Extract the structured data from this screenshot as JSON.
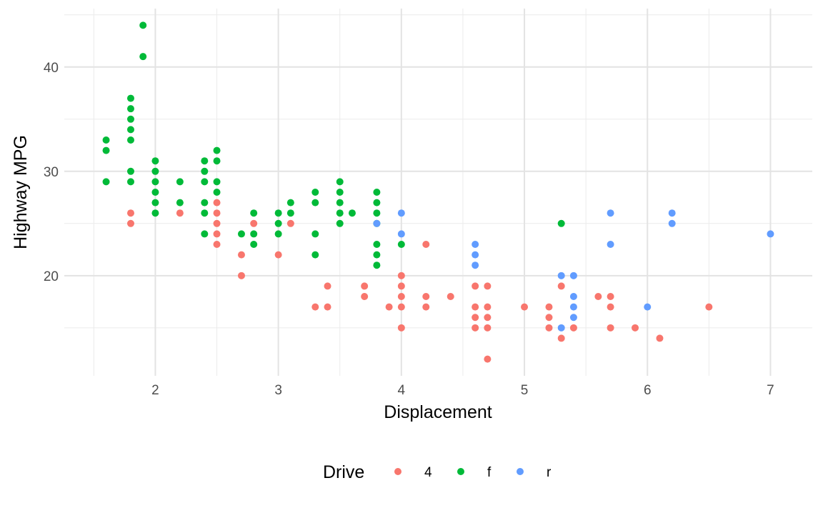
{
  "chart_data": {
    "type": "scatter",
    "xlabel": "Displacement",
    "ylabel": "Highway MPG",
    "xlim": [
      1.26,
      7.34
    ],
    "ylim": [
      10.4,
      45.6
    ],
    "x_ticks": [
      2,
      3,
      4,
      5,
      6,
      7
    ],
    "x_minor_ticks": [
      1.5,
      2.5,
      3.5,
      4.5,
      5.5,
      6.5
    ],
    "y_ticks": [
      20,
      30,
      40
    ],
    "y_minor_ticks": [
      15,
      25,
      35,
      45
    ],
    "grid": true,
    "legend": {
      "title": "Drive",
      "placement": "bottom"
    },
    "series": [
      {
        "name": "4",
        "color": "#F8766D",
        "points": [
          [
            1.8,
            26
          ],
          [
            1.8,
            25
          ],
          [
            2.2,
            26
          ],
          [
            2.5,
            27
          ],
          [
            2.5,
            26
          ],
          [
            2.5,
            25
          ],
          [
            2.5,
            24
          ],
          [
            2.5,
            23
          ],
          [
            2.7,
            22
          ],
          [
            2.7,
            20
          ],
          [
            2.8,
            25
          ],
          [
            3.0,
            22
          ],
          [
            3.1,
            25
          ],
          [
            3.3,
            17
          ],
          [
            3.4,
            19
          ],
          [
            3.4,
            17
          ],
          [
            3.7,
            19
          ],
          [
            3.7,
            18
          ],
          [
            3.9,
            17
          ],
          [
            4.0,
            20
          ],
          [
            4.0,
            19
          ],
          [
            4.0,
            18
          ],
          [
            4.0,
            17
          ],
          [
            4.0,
            15
          ],
          [
            4.2,
            23
          ],
          [
            4.2,
            18
          ],
          [
            4.2,
            17
          ],
          [
            4.4,
            18
          ],
          [
            4.6,
            19
          ],
          [
            4.6,
            17
          ],
          [
            4.6,
            16
          ],
          [
            4.6,
            15
          ],
          [
            4.7,
            19
          ],
          [
            4.7,
            17
          ],
          [
            4.7,
            16
          ],
          [
            4.7,
            15
          ],
          [
            4.7,
            12
          ],
          [
            5.0,
            17
          ],
          [
            5.2,
            17
          ],
          [
            5.2,
            16
          ],
          [
            5.2,
            15
          ],
          [
            5.3,
            19
          ],
          [
            5.3,
            14
          ],
          [
            5.4,
            15
          ],
          [
            5.6,
            18
          ],
          [
            5.7,
            18
          ],
          [
            5.7,
            17
          ],
          [
            5.7,
            15
          ],
          [
            5.9,
            15
          ],
          [
            6.1,
            14
          ],
          [
            6.5,
            17
          ]
        ]
      },
      {
        "name": "f",
        "color": "#00BA38",
        "points": [
          [
            1.6,
            33
          ],
          [
            1.6,
            32
          ],
          [
            1.6,
            29
          ],
          [
            1.8,
            37
          ],
          [
            1.8,
            36
          ],
          [
            1.8,
            35
          ],
          [
            1.8,
            34
          ],
          [
            1.8,
            33
          ],
          [
            1.8,
            30
          ],
          [
            1.8,
            29
          ],
          [
            1.9,
            44
          ],
          [
            1.9,
            41
          ],
          [
            2.0,
            31
          ],
          [
            2.0,
            30
          ],
          [
            2.0,
            29
          ],
          [
            2.0,
            28
          ],
          [
            2.0,
            27
          ],
          [
            2.0,
            26
          ],
          [
            2.2,
            29
          ],
          [
            2.2,
            27
          ],
          [
            2.4,
            31
          ],
          [
            2.4,
            30
          ],
          [
            2.4,
            29
          ],
          [
            2.4,
            27
          ],
          [
            2.4,
            26
          ],
          [
            2.4,
            24
          ],
          [
            2.5,
            32
          ],
          [
            2.5,
            31
          ],
          [
            2.5,
            29
          ],
          [
            2.5,
            28
          ],
          [
            2.7,
            24
          ],
          [
            2.8,
            26
          ],
          [
            2.8,
            24
          ],
          [
            2.8,
            23
          ],
          [
            3.0,
            26
          ],
          [
            3.0,
            25
          ],
          [
            3.0,
            24
          ],
          [
            3.1,
            27
          ],
          [
            3.1,
            26
          ],
          [
            3.3,
            28
          ],
          [
            3.3,
            27
          ],
          [
            3.3,
            24
          ],
          [
            3.3,
            22
          ],
          [
            3.5,
            29
          ],
          [
            3.5,
            28
          ],
          [
            3.5,
            27
          ],
          [
            3.5,
            26
          ],
          [
            3.5,
            25
          ],
          [
            3.6,
            26
          ],
          [
            3.8,
            28
          ],
          [
            3.8,
            27
          ],
          [
            3.8,
            26
          ],
          [
            3.8,
            25
          ],
          [
            3.8,
            23
          ],
          [
            3.8,
            22
          ],
          [
            3.8,
            21
          ],
          [
            4.0,
            23
          ],
          [
            5.3,
            25
          ]
        ]
      },
      {
        "name": "r",
        "color": "#619CFF",
        "points": [
          [
            3.8,
            25
          ],
          [
            4.0,
            26
          ],
          [
            4.0,
            24
          ],
          [
            4.6,
            23
          ],
          [
            4.6,
            22
          ],
          [
            4.6,
            21
          ],
          [
            5.3,
            20
          ],
          [
            5.3,
            15
          ],
          [
            5.4,
            20
          ],
          [
            5.4,
            18
          ],
          [
            5.4,
            17
          ],
          [
            5.4,
            16
          ],
          [
            5.7,
            26
          ],
          [
            5.7,
            23
          ],
          [
            6.0,
            17
          ],
          [
            6.2,
            26
          ],
          [
            6.2,
            25
          ],
          [
            7.0,
            24
          ]
        ]
      }
    ]
  }
}
